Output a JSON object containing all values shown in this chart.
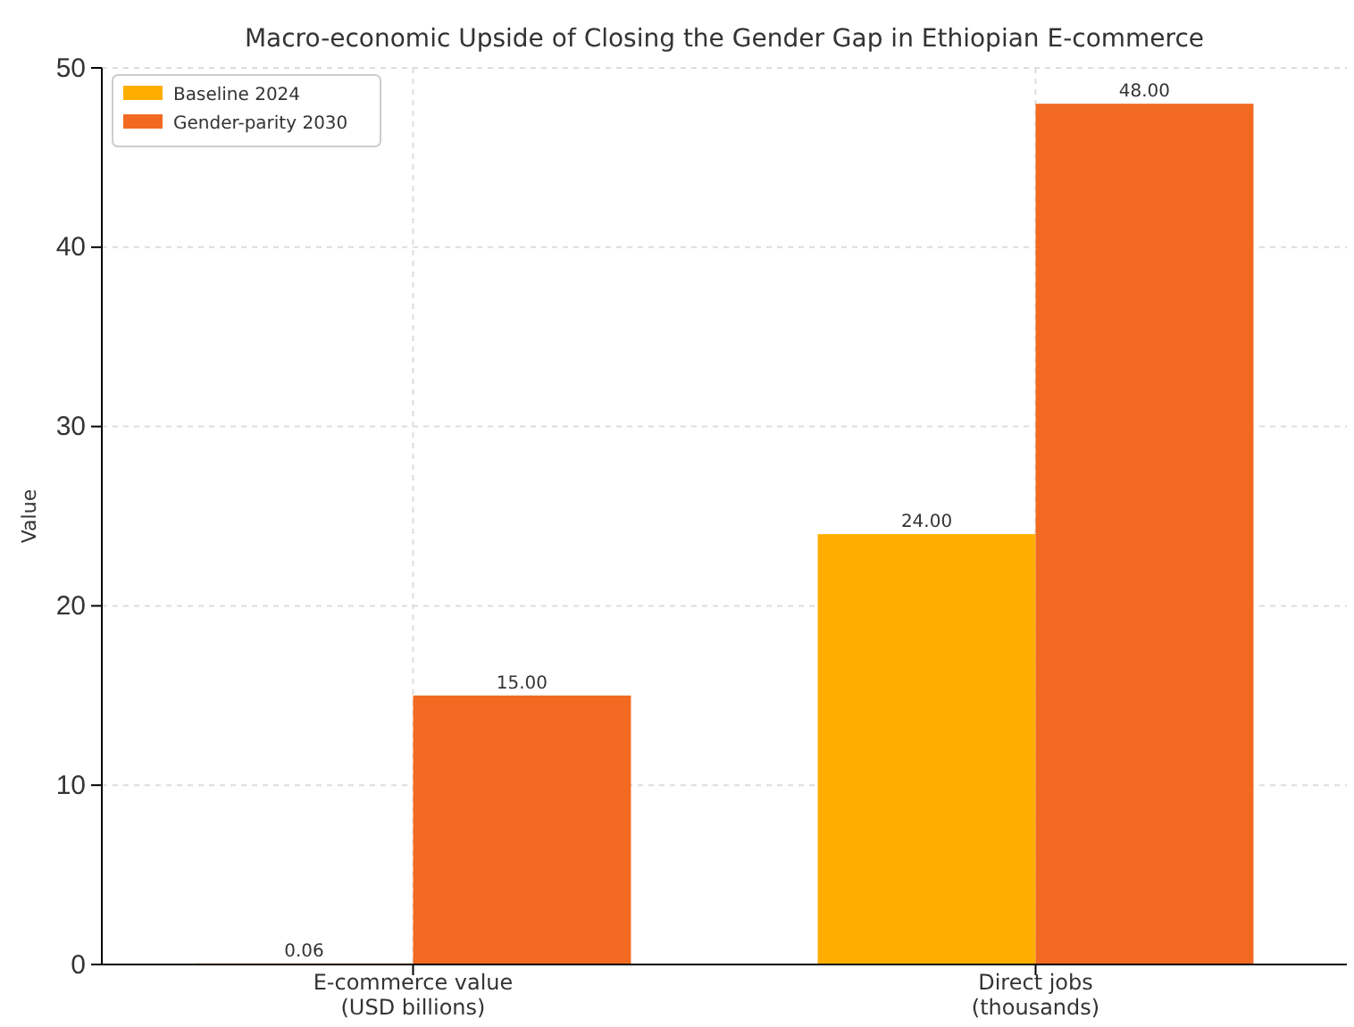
{
  "chart_data": {
    "type": "bar",
    "title": "Macro-economic Upside of Closing the Gender Gap in Ethiopian E-commerce",
    "ylabel": "Value",
    "categories": [
      "E-commerce value\n(USD billions)",
      "Direct jobs\n(thousands)"
    ],
    "series": [
      {
        "name": "Baseline 2024",
        "color": "#ffae00",
        "values": [
          0.06,
          24
        ],
        "value_labels": [
          "0.06",
          "24.00"
        ]
      },
      {
        "name": "Gender-parity 2030",
        "color": "#f26a21",
        "values": [
          15,
          48
        ],
        "value_labels": [
          "15.00",
          "48.00"
        ]
      }
    ],
    "ylim": [
      0,
      50
    ],
    "yticks": [
      0,
      10,
      20,
      30,
      40,
      50
    ],
    "grid": true,
    "legend": "top left"
  }
}
